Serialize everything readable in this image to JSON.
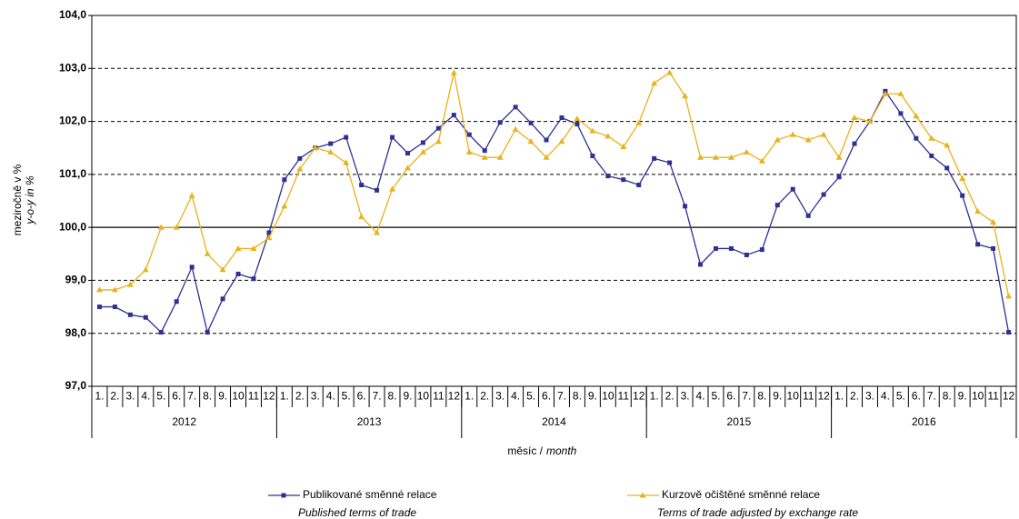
{
  "chart_data": {
    "type": "line",
    "y_title": "meziročně v %",
    "y_title_en": "y-o-y in %",
    "x_title": "měsíc /",
    "x_title_en": "month",
    "categories": [
      "1.",
      "2.",
      "3.",
      "4.",
      "5.",
      "6.",
      "7.",
      "8.",
      "9.",
      "10",
      "11",
      "12",
      "1.",
      "2.",
      "3.",
      "4.",
      "5.",
      "6.",
      "7.",
      "8.",
      "9.",
      "10",
      "11",
      "12",
      "1.",
      "2.",
      "3.",
      "4.",
      "5.",
      "6.",
      "7.",
      "8.",
      "9.",
      "10",
      "11",
      "12",
      "1.",
      "2.",
      "3.",
      "4.",
      "5.",
      "6.",
      "7.",
      "8.",
      "9.",
      "10",
      "11",
      "12",
      "1.",
      "2.",
      "3.",
      "4.",
      "5.",
      "6.",
      "7.",
      "8.",
      "9.",
      "10",
      "11",
      "12"
    ],
    "years": [
      "2012",
      "2013",
      "2014",
      "2015",
      "2016"
    ],
    "ylim": [
      97,
      104
    ],
    "yticks": [
      {
        "value": 97,
        "label": "97,0"
      },
      {
        "value": 98,
        "label": "98,0"
      },
      {
        "value": 99,
        "label": "99,0"
      },
      {
        "value": 100,
        "label": "100,0"
      },
      {
        "value": 101,
        "label": "101,0"
      },
      {
        "value": 102,
        "label": "102,0"
      },
      {
        "value": 103,
        "label": "103,0"
      },
      {
        "value": 104,
        "label": "104,0"
      }
    ],
    "grid": true,
    "series": [
      {
        "name": "Publikované směnné relace",
        "name_en": "Published terms of trade",
        "color": "#2e3192",
        "marker": "square",
        "values": [
          98.5,
          98.5,
          98.35,
          98.3,
          98.02,
          98.6,
          99.25,
          98.02,
          98.65,
          99.12,
          99.03,
          99.9,
          100.9,
          101.3,
          101.5,
          101.58,
          101.7,
          100.8,
          100.7,
          101.7,
          101.4,
          101.6,
          101.87,
          102.12,
          101.75,
          101.45,
          101.98,
          102.27,
          101.97,
          101.65,
          102.07,
          101.95,
          101.35,
          100.97,
          100.9,
          100.8,
          101.3,
          101.22,
          100.4,
          99.3,
          99.6,
          99.6,
          99.48,
          99.58,
          100.42,
          100.72,
          100.22,
          100.62,
          100.95,
          101.58,
          102.0,
          102.57,
          102.15,
          101.68,
          101.35,
          101.12,
          100.6,
          99.68,
          99.6,
          98.02
        ]
      },
      {
        "name": "Kurzově očištěné směnné relace",
        "name_en": "Terms of trade adjusted by exchange rate",
        "color": "#e8b21a",
        "marker": "triangle",
        "values": [
          98.82,
          98.82,
          98.92,
          99.2,
          100.0,
          100.0,
          100.6,
          99.5,
          99.2,
          99.6,
          99.6,
          99.8,
          100.4,
          101.1,
          101.5,
          101.42,
          101.22,
          100.2,
          99.9,
          100.72,
          101.12,
          101.42,
          101.62,
          102.92,
          101.42,
          101.32,
          101.32,
          101.85,
          101.62,
          101.32,
          101.62,
          102.05,
          101.82,
          101.72,
          101.52,
          101.97,
          102.72,
          102.92,
          102.48,
          101.32,
          101.32,
          101.32,
          101.42,
          101.25,
          101.65,
          101.75,
          101.65,
          101.75,
          101.32,
          102.07,
          102.0,
          102.52,
          102.52,
          102.1,
          101.68,
          101.55,
          100.92,
          100.3,
          100.1,
          98.7
        ]
      }
    ]
  }
}
